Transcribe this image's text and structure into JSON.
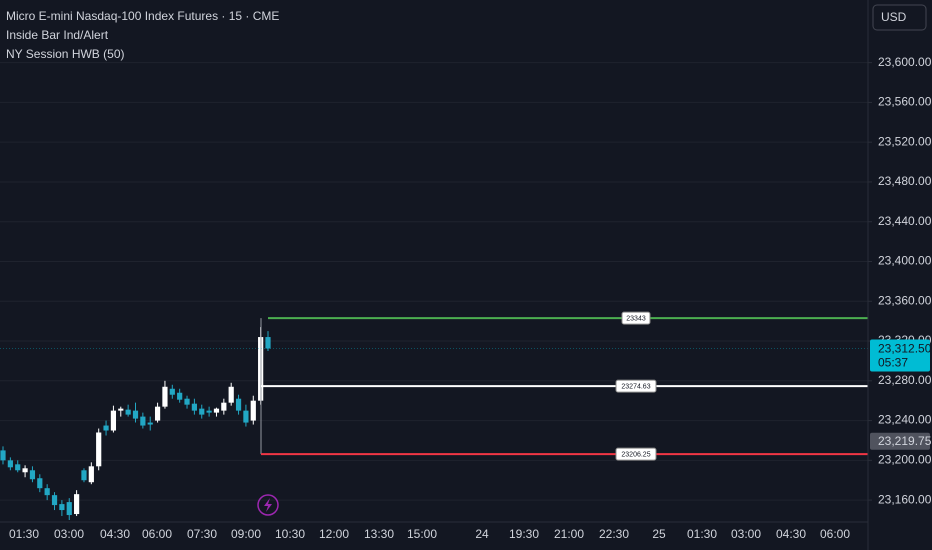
{
  "chart_data": {
    "type": "candlestick",
    "title": "Micro E-mini Nasdaq-100 Index Futures · 15 · CME",
    "indicators": [
      "Inside Bar Ind/Alert",
      "NY Session HWB (50)"
    ],
    "currency": "USD",
    "up_color": "#ffffff",
    "down_color": "#22a7c4",
    "open": [
      23210,
      23200,
      23196,
      23188,
      23190,
      23182,
      23172,
      23165,
      23156,
      23158,
      23146,
      23190,
      23178,
      23194,
      23235,
      23230,
      23250,
      23251,
      23250,
      23244,
      23238,
      23240,
      23254,
      23272,
      23268,
      23262,
      23257,
      23252,
      23250,
      23248,
      23250,
      23258,
      23262,
      23250,
      23240,
      23260,
      23324
    ],
    "high": [
      23214,
      23203,
      23200,
      23195,
      23194,
      23186,
      23176,
      23168,
      23160,
      23162,
      23170,
      23192,
      23198,
      23232,
      23240,
      23255,
      23254,
      23256,
      23258,
      23248,
      23244,
      23258,
      23280,
      23276,
      23272,
      23265,
      23262,
      23256,
      23254,
      23253,
      23262,
      23278,
      23266,
      23256,
      23265,
      23334,
      23330
    ],
    "low": [
      23196,
      23190,
      23188,
      23183,
      23178,
      23168,
      23160,
      23150,
      23144,
      23140,
      23144,
      23178,
      23176,
      23190,
      23225,
      23228,
      23244,
      23244,
      23238,
      23232,
      23230,
      23238,
      23252,
      23262,
      23258,
      23252,
      23246,
      23242,
      23244,
      23244,
      23246,
      23255,
      23246,
      23234,
      23236,
      23256,
      23310
    ],
    "close": [
      23200,
      23193,
      23190,
      23192,
      23181,
      23172,
      23165,
      23155,
      23150,
      23145,
      23166,
      23180,
      23194,
      23228,
      23230,
      23250,
      23252,
      23246,
      23242,
      23235,
      23236,
      23254,
      23274,
      23266,
      23261,
      23256,
      23250,
      23246,
      23248,
      23252,
      23258,
      23274,
      23250,
      23238,
      23260,
      23324,
      23312.5
    ],
    "levels": [
      {
        "value": 23343,
        "color": "#4caf50"
      },
      {
        "value": 23274.63,
        "color": "#ffffff"
      },
      {
        "value": 23206.25,
        "color": "#f23645"
      }
    ],
    "last_price": {
      "value": 23312.5,
      "label": "23,312.50",
      "countdown": "05:37",
      "color": "#00bcd4"
    },
    "marker_price": {
      "value": 23219.75,
      "label": "23,219.75"
    },
    "ylim": [
      23140,
      23663
    ],
    "yticks": [
      {
        "value": 23160,
        "label": "23,160.00"
      },
      {
        "value": 23200,
        "label": "23,200.00"
      },
      {
        "value": 23240,
        "label": "23,240.00"
      },
      {
        "value": 23280,
        "label": "23,280.00"
      },
      {
        "value": 23320,
        "label": "23,320.00"
      },
      {
        "value": 23360,
        "label": "23,360.00"
      },
      {
        "value": 23400,
        "label": "23,400.00"
      },
      {
        "value": 23440,
        "label": "23,440.00"
      },
      {
        "value": 23480,
        "label": "23,480.00"
      },
      {
        "value": 23520,
        "label": "23,520.00"
      },
      {
        "value": 23560,
        "label": "23,560.00"
      },
      {
        "value": 23600,
        "label": "23,600.00"
      }
    ],
    "x_labels": [
      "01:30",
      "03:00",
      "04:30",
      "06:00",
      "07:30",
      "09:00",
      "10:30",
      "12:00",
      "13:30",
      "15:00",
      "24",
      "19:30",
      "21:00",
      "22:30",
      "25",
      "01:30",
      "03:00",
      "04:30",
      "06:00"
    ],
    "grid": true
  }
}
